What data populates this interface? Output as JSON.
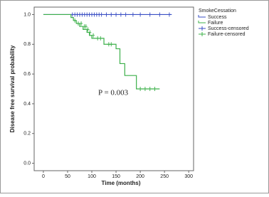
{
  "chart_data": {
    "type": "km",
    "xlabel": "Time (months)",
    "ylabel": "Disease free survival probability",
    "annotation": "P = 0.003",
    "legend_title": "SmokeCessation",
    "legend": "right",
    "xlim": [
      -19,
      310
    ],
    "ylim": [
      -0.05,
      1.05
    ],
    "xticks": [
      0,
      50,
      100,
      150,
      200,
      250,
      300
    ],
    "yticks": [
      {
        "value": 0,
        "label": "0.0"
      },
      {
        "value": 0.2,
        "label": "0.2"
      },
      {
        "value": 0.4,
        "label": "0.4"
      },
      {
        "value": 0.6,
        "label": "0.6"
      },
      {
        "value": 0.8,
        "label": "0.8"
      },
      {
        "value": 1,
        "label": "1.0"
      }
    ],
    "series": [
      {
        "name": "Success",
        "color": "#3a4fc4",
        "style": "step",
        "x": [
          0,
          265
        ],
        "values": [
          1,
          1
        ]
      },
      {
        "name": "Failure",
        "color": "#3cb04a",
        "style": "step",
        "x": [
          0,
          57,
          62,
          68,
          75,
          82,
          90,
          95,
          100,
          125,
          150,
          158,
          168,
          192,
          240
        ],
        "values": [
          1,
          0.98,
          0.96,
          0.94,
          0.92,
          0.9,
          0.88,
          0.86,
          0.84,
          0.8,
          0.77,
          0.67,
          0.59,
          0.5,
          0.5
        ]
      },
      {
        "name": "Success-censored",
        "color": "#3a4fc4",
        "style": "censor",
        "x": [
          60,
          65,
          70,
          75,
          80,
          85,
          90,
          95,
          100,
          105,
          110,
          115,
          120,
          130,
          140,
          150,
          160,
          170,
          185,
          200,
          220,
          240,
          260
        ],
        "values": [
          1,
          1,
          1,
          1,
          1,
          1,
          1,
          1,
          1,
          1,
          1,
          1,
          1,
          1,
          1,
          1,
          1,
          1,
          1,
          1,
          1,
          1,
          1
        ]
      },
      {
        "name": "Failure-censored",
        "color": "#3cb04a",
        "style": "censor",
        "x": [
          65,
          72,
          78,
          85,
          88,
          92,
          96,
          103,
          112,
          118,
          135,
          140,
          200,
          210,
          220,
          230
        ],
        "values": [
          0.96,
          0.94,
          0.94,
          0.92,
          0.92,
          0.9,
          0.88,
          0.86,
          0.84,
          0.84,
          0.8,
          0.8,
          0.5,
          0.5,
          0.5,
          0.5
        ]
      }
    ]
  }
}
